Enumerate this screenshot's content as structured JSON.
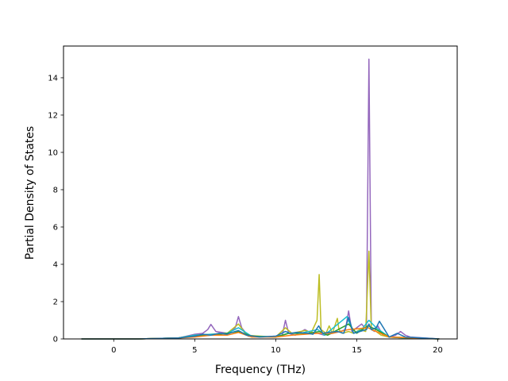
{
  "chart_data": {
    "type": "line",
    "xlabel": "Frequency (THz)",
    "ylabel": "Partial Density of States",
    "xlim": [
      -3.1,
      21.2
    ],
    "ylim": [
      0,
      15.7
    ],
    "xticks": [
      0,
      5,
      10,
      15,
      20
    ],
    "yticks": [
      0,
      2,
      4,
      6,
      8,
      10,
      12,
      14
    ],
    "grid": false,
    "colors": [
      "#9467bd",
      "#bcbd22",
      "#17becf",
      "#2ca02c",
      "#ff7f0e",
      "#1f77b4"
    ],
    "series": [
      {
        "color": "#9467bd",
        "x": [
          -2,
          1.5,
          4,
          4.5,
          5,
          5.5,
          5.8,
          6,
          6.3,
          7,
          7.5,
          7.7,
          7.9,
          8.3,
          9,
          10,
          10.4,
          10.6,
          10.8,
          11.2,
          11.8,
          12.2,
          12.6,
          13,
          13.5,
          14,
          14.3,
          14.5,
          14.7,
          15,
          15.3,
          15.6,
          15.75,
          15.9,
          16.1,
          16.3,
          16.6,
          17,
          17.4,
          17.7,
          18,
          18.3,
          20.1
        ],
        "y": [
          0,
          0,
          0.05,
          0.15,
          0.25,
          0.3,
          0.5,
          0.78,
          0.4,
          0.3,
          0.6,
          1.2,
          0.6,
          0.15,
          0.1,
          0.15,
          0.2,
          1.0,
          0.3,
          0.2,
          0.5,
          0.3,
          0.3,
          0.2,
          0.3,
          0.4,
          0.5,
          1.5,
          0.4,
          0.6,
          0.8,
          0.5,
          15.0,
          0.5,
          0.4,
          0.7,
          0.2,
          0.1,
          0.2,
          0.4,
          0.2,
          0.1,
          0
        ]
      },
      {
        "color": "#bcbd22",
        "x": [
          -2,
          1.5,
          4,
          5,
          6,
          7,
          7.7,
          8.2,
          9,
          10,
          10.6,
          11,
          11.8,
          12.2,
          12.55,
          12.68,
          12.8,
          13.1,
          13.3,
          13.5,
          13.8,
          13.9,
          14.1,
          14.5,
          14.8,
          15.2,
          15.55,
          15.75,
          15.9,
          16.2,
          16.5,
          17,
          18,
          20.1
        ],
        "y": [
          0,
          0,
          0.05,
          0.2,
          0.25,
          0.3,
          0.8,
          0.2,
          0.15,
          0.1,
          0.6,
          0.3,
          0.45,
          0.35,
          1.0,
          3.45,
          0.5,
          0.3,
          0.7,
          0.3,
          1.1,
          0.5,
          0.3,
          0.4,
          0.3,
          0.5,
          0.4,
          4.7,
          0.5,
          0.4,
          0.2,
          0.1,
          0.05,
          0
        ]
      },
      {
        "color": "#17becf",
        "x": [
          -2,
          1.5,
          4,
          5,
          6,
          7,
          7.7,
          8.5,
          10,
          10.8,
          11.5,
          12.6,
          13,
          14.4,
          14.8,
          15.3,
          15.75,
          16.2,
          17,
          18,
          20.1
        ],
        "y": [
          0,
          0,
          0.05,
          0.2,
          0.25,
          0.3,
          0.6,
          0.15,
          0.1,
          0.3,
          0.3,
          0.5,
          0.2,
          1.2,
          0.3,
          0.5,
          1.0,
          0.6,
          0.1,
          0.05,
          0
        ]
      },
      {
        "color": "#2ca02c",
        "x": [
          -2,
          1.5,
          4,
          5,
          6,
          7,
          7.7,
          8.5,
          10,
          10.8,
          12,
          12.7,
          13.2,
          14.5,
          15,
          15.7,
          16.2,
          17,
          20.1
        ],
        "y": [
          0,
          0,
          0.05,
          0.15,
          0.2,
          0.3,
          0.4,
          0.15,
          0.1,
          0.3,
          0.3,
          0.4,
          0.2,
          0.8,
          0.3,
          0.7,
          0.5,
          0.1,
          0
        ]
      },
      {
        "color": "#ff7f0e",
        "x": [
          -2,
          1.5,
          4,
          5,
          6,
          7,
          7.7,
          8.5,
          10,
          11,
          12.6,
          13.5,
          14.5,
          15.7,
          16.2,
          17,
          20.1
        ],
        "y": [
          0,
          0,
          0.05,
          0.1,
          0.2,
          0.2,
          0.35,
          0.1,
          0.1,
          0.2,
          0.3,
          0.3,
          0.5,
          0.6,
          0.4,
          0.1,
          0
        ]
      },
      {
        "color": "#1f77b4",
        "x": [
          -2,
          1.5,
          4,
          4.5,
          5,
          5.5,
          6,
          6.5,
          7,
          7.3,
          7.7,
          8.2,
          9,
          10,
          10.6,
          10.9,
          11.3,
          12,
          12.3,
          12.65,
          12.9,
          13.3,
          13.8,
          14.2,
          14.5,
          14.8,
          15.2,
          15.6,
          15.75,
          15.9,
          16.2,
          16.4,
          17,
          17.5,
          18,
          20.1
        ],
        "y": [
          0,
          0,
          0.05,
          0.1,
          0.15,
          0.25,
          0.2,
          0.3,
          0.25,
          0.35,
          0.45,
          0.2,
          0.1,
          0.15,
          0.4,
          0.3,
          0.35,
          0.3,
          0.25,
          0.7,
          0.3,
          0.35,
          0.4,
          0.3,
          1.15,
          0.3,
          0.4,
          0.5,
          0.8,
          0.5,
          0.6,
          0.95,
          0.1,
          0.3,
          0.1,
          0
        ]
      }
    ]
  }
}
